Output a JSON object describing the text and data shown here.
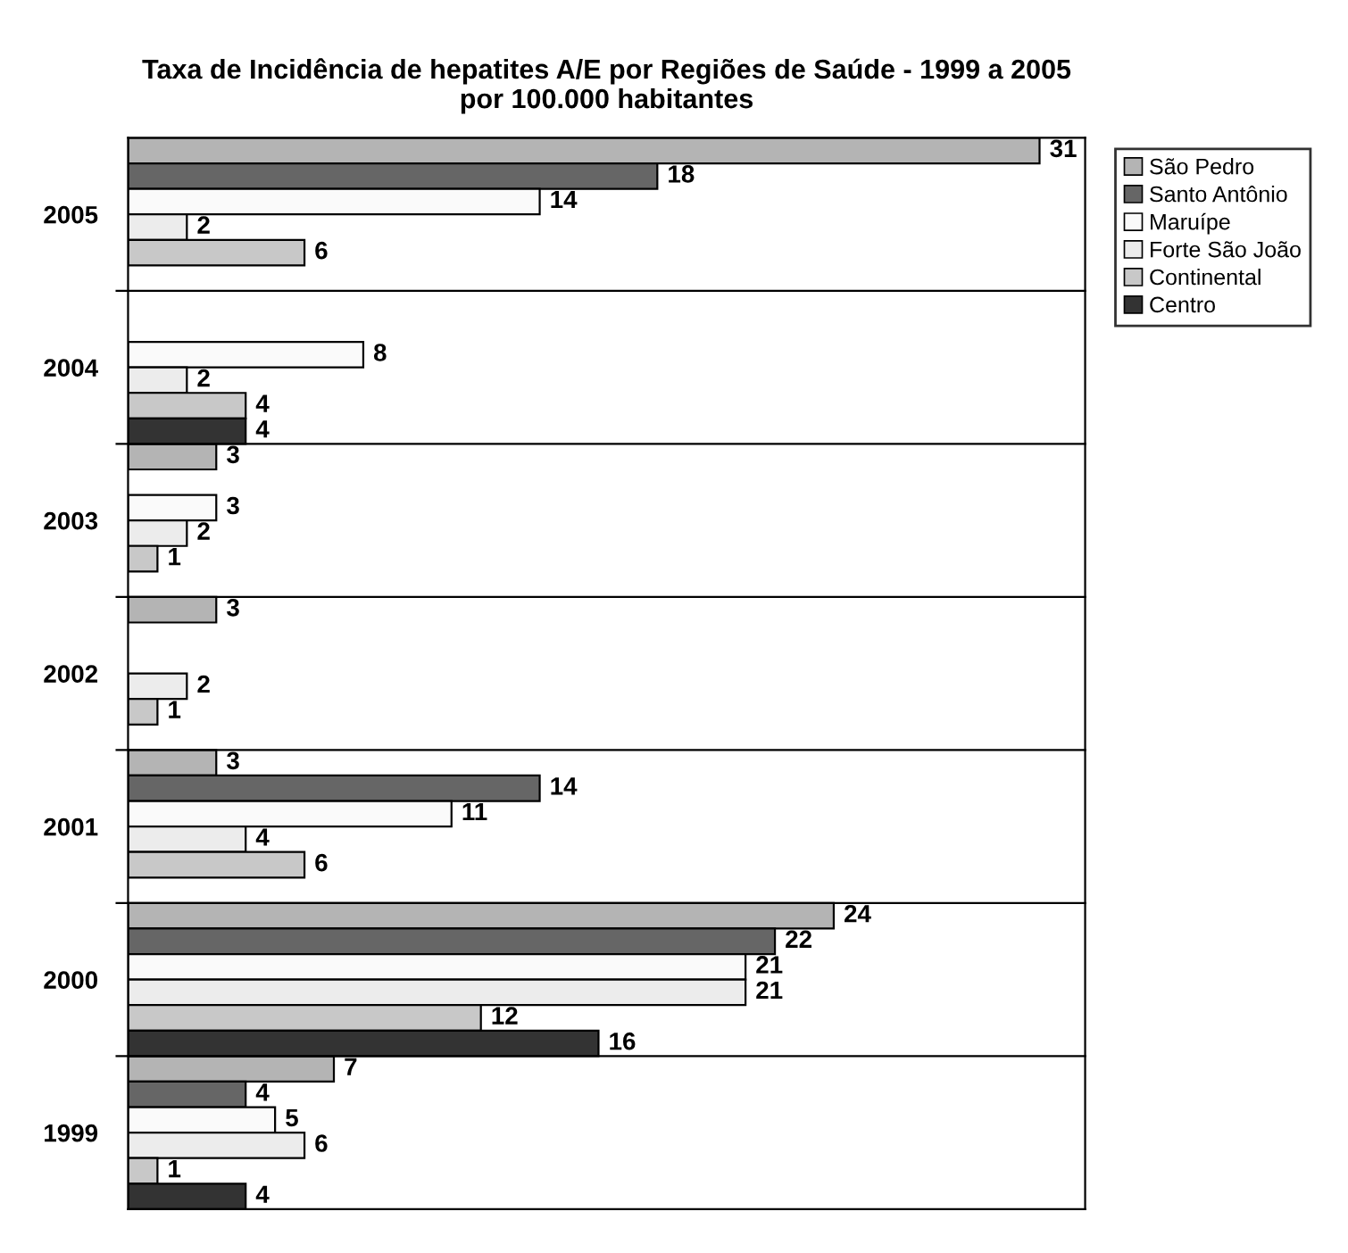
{
  "chart_data": {
    "type": "bar",
    "orientation": "horizontal",
    "title": "Taxa de Incidência de hepatites A/E por Regiões de Saúde - 1999 a 2005\npor 100.000 habitantes",
    "categories": [
      "2005",
      "2004",
      "2003",
      "2002",
      "2001",
      "2000",
      "1999"
    ],
    "series": [
      {
        "name": "São Pedro",
        "color": "#b4b4b4",
        "values": [
          31,
          null,
          3,
          3,
          3,
          24,
          7
        ]
      },
      {
        "name": "Santo Antônio",
        "color": "#666666",
        "values": [
          18,
          null,
          null,
          null,
          14,
          22,
          4
        ]
      },
      {
        "name": "Maruípe",
        "color": "#fafafa",
        "values": [
          14,
          8,
          3,
          null,
          11,
          21,
          5
        ]
      },
      {
        "name": "Forte São João",
        "color": "#ececec",
        "values": [
          2,
          2,
          2,
          2,
          4,
          21,
          6
        ]
      },
      {
        "name": "Continental",
        "color": "#c8c8c8",
        "values": [
          6,
          4,
          1,
          1,
          6,
          12,
          1
        ]
      },
      {
        "name": "Centro",
        "color": "#333333",
        "values": [
          null,
          4,
          null,
          null,
          null,
          16,
          4
        ]
      }
    ],
    "data_labels": true,
    "grid": "y",
    "legend": "top right"
  }
}
